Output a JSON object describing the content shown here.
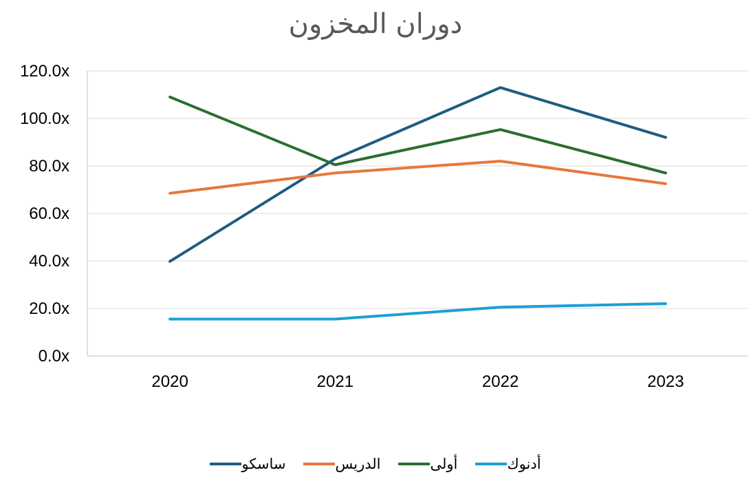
{
  "chart_data": {
    "type": "line",
    "title": "دوران المخزون",
    "xlabel": "",
    "ylabel": "",
    "categories": [
      "2020",
      "2021",
      "2022",
      "2023"
    ],
    "ylim": [
      0,
      120
    ],
    "yticks": [
      "0.0x",
      "20.0x",
      "40.0x",
      "60.0x",
      "80.0x",
      "100.0x",
      "120.0x"
    ],
    "ytick_values": [
      0,
      20,
      40,
      60,
      80,
      100,
      120
    ],
    "grid": true,
    "legend_position": "bottom",
    "series": [
      {
        "name": "ساسكو",
        "color": "#1F5C80",
        "values": [
          39.8,
          83.0,
          113.0,
          92.0
        ]
      },
      {
        "name": "الدريس",
        "color": "#E8773D",
        "values": [
          68.5,
          77.0,
          82.0,
          72.5
        ]
      },
      {
        "name": "أولى",
        "color": "#2A6E2F",
        "values": [
          109.0,
          80.5,
          95.3,
          77.0
        ]
      },
      {
        "name": "أدنوك",
        "color": "#1C9FD8",
        "values": [
          15.5,
          15.5,
          20.5,
          22.0
        ]
      }
    ]
  }
}
